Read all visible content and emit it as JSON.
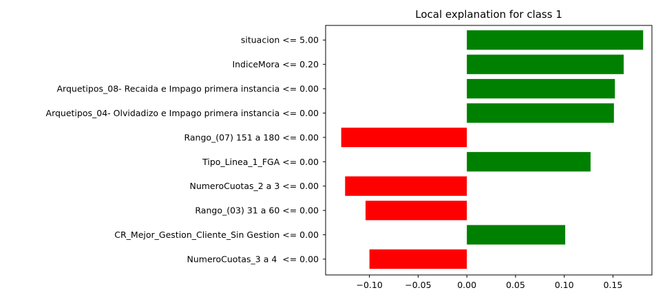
{
  "chart_data": {
    "type": "bar",
    "orientation": "horizontal",
    "title": "Local explanation for class 1",
    "xlabel": "",
    "ylabel": "",
    "xlim": [
      -0.145,
      0.19
    ],
    "grid": false,
    "xticks": [
      -0.1,
      -0.05,
      0.0,
      0.05,
      0.1,
      0.15
    ],
    "xtick_labels": [
      "−0.10",
      "−0.05",
      "0.00",
      "0.05",
      "0.10",
      "0.15"
    ],
    "positive_color": "#008000",
    "negative_color": "#ff0000",
    "categories": [
      "situacion <= 5.00",
      "IndiceMora <= 0.20",
      "Arquetipos_08- Recaida e Impago primera instancia <= 0.00",
      "Arquetipos_04- Olvidadizo e Impago primera instancia <= 0.00",
      "Rango_(07) 151 a 180 <= 0.00",
      "Tipo_Linea_1_FGA <= 0.00",
      "NumeroCuotas_2 a 3 <= 0.00",
      "Rango_(03) 31 a 60 <= 0.00",
      "CR_Mejor_Gestion_Cliente_Sin Gestion <= 0.00",
      "NumeroCuotas_3 a 4  <= 0.00"
    ],
    "values": [
      0.181,
      0.161,
      0.152,
      0.151,
      -0.129,
      0.127,
      -0.125,
      -0.104,
      0.101,
      -0.1
    ]
  }
}
